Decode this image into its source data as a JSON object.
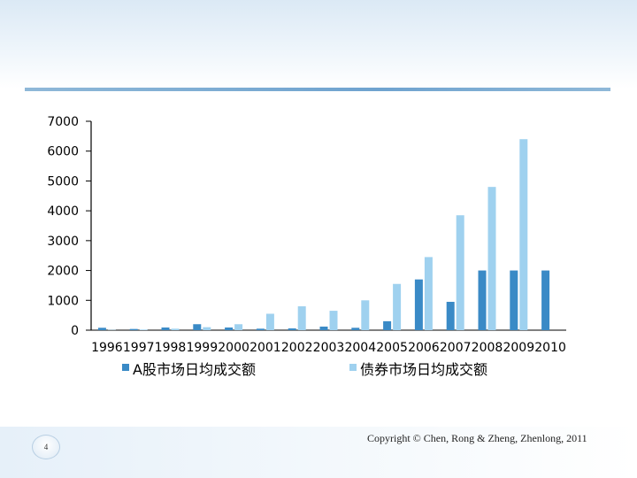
{
  "footer": {
    "page_number": "4",
    "copyright": "Copyright © Chen, Rong  & Zheng, Zhenlong, 2011"
  },
  "colors": {
    "series_a": "#3a8ac6",
    "series_b": "#9fd1ef",
    "axis": "#000000"
  },
  "chart_data": {
    "type": "bar",
    "title": "",
    "xlabel": "",
    "ylabel": "",
    "ylim": [
      0,
      7000
    ],
    "yticks": [
      0,
      1000,
      2000,
      3000,
      4000,
      5000,
      6000,
      7000
    ],
    "categories": [
      "1996",
      "1997",
      "1998",
      "1999",
      "2000",
      "2001",
      "2002",
      "2003",
      "2004",
      "2005",
      "2006",
      "2007",
      "2008",
      "2009",
      "2010"
    ],
    "series": [
      {
        "name": "A股市场日均成交额",
        "values": [
          80,
          40,
          90,
          200,
          90,
          50,
          60,
          120,
          80,
          300,
          1700,
          950,
          2000,
          2000,
          2000
        ]
      },
      {
        "name": "债券市场日均成交额",
        "values": [
          10,
          20,
          50,
          100,
          200,
          550,
          800,
          650,
          1000,
          1550,
          2450,
          3850,
          4800,
          6400,
          0
        ]
      }
    ],
    "legend_position": "bottom",
    "grid": false
  }
}
